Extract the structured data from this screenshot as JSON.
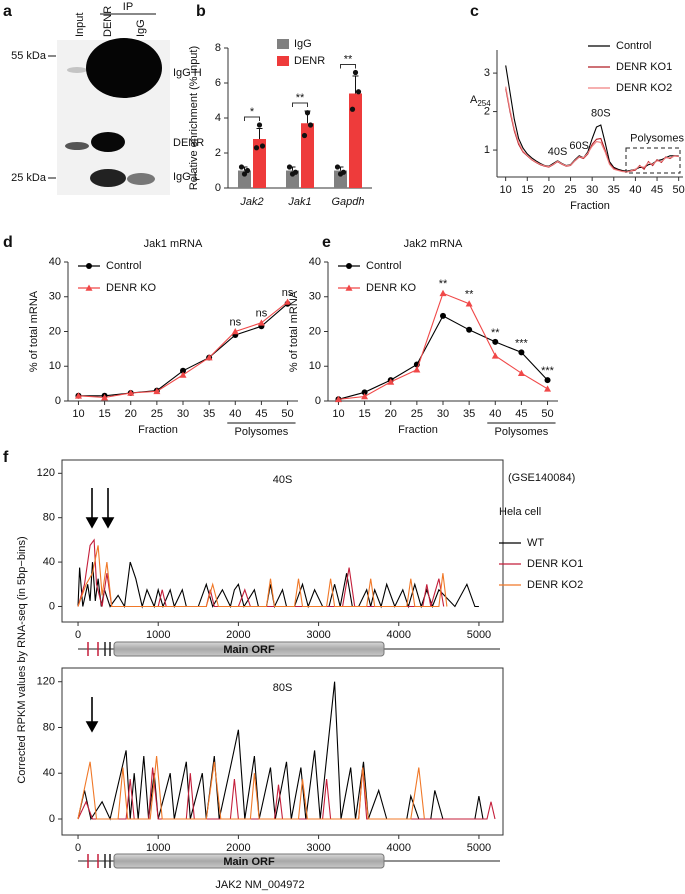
{
  "panel_labels": [
    "a",
    "b",
    "c",
    "d",
    "e",
    "f"
  ],
  "blot": {
    "ip_label": "IP",
    "lanes": [
      "Input",
      "DENR",
      "IgG"
    ],
    "markers": [
      "55 kDa",
      "25 kDa"
    ],
    "bands": [
      "IgG H",
      "DENR",
      "IgG L"
    ]
  },
  "figure_f": {
    "ylabel": "Corrected RPKM values by RNA-seq (in 5bp−bins)",
    "dataset": "(GSE140084)",
    "cell": "Hela cell",
    "caption": "JAK2 NM_004972",
    "gene_model": "Main ORF"
  },
  "chart_data": [
    {
      "type": "bar",
      "ylabel": "Relative enrichment (% input)",
      "categories": [
        "Jak2",
        "Jak1",
        "Gapdh"
      ],
      "series": [
        {
          "name": "IgG",
          "color": "#808080",
          "values": [
            1,
            1,
            1
          ],
          "errors": [
            0.2,
            0.2,
            0.2
          ],
          "points": [
            [
              1.2,
              0.8,
              1.0
            ],
            [
              1.2,
              0.8,
              0.9
            ],
            [
              1.2,
              0.8,
              0.9
            ]
          ]
        },
        {
          "name": "DENR",
          "color": "#ee3b3b",
          "values": [
            2.8,
            3.7,
            5.4
          ],
          "errors": [
            0.6,
            0.7,
            1.0
          ],
          "points": [
            [
              2.3,
              3.6,
              2.4
            ],
            [
              3.0,
              4.3,
              3.6
            ],
            [
              4.5,
              6.6,
              5.5
            ]
          ]
        }
      ],
      "significance": [
        "*",
        "**",
        "**"
      ],
      "ylim": [
        0,
        8
      ],
      "yticks": [
        0,
        2,
        4,
        6,
        8
      ],
      "legend": "top-right"
    },
    {
      "type": "line",
      "xlabel": "Fraction",
      "ylabel": "A",
      "ylabel_sub": "254",
      "x": [
        10,
        11,
        12,
        13,
        14,
        15,
        16,
        17,
        18,
        19,
        20,
        21,
        22,
        23,
        24,
        25,
        26,
        27,
        28,
        29,
        30,
        31,
        32,
        33,
        34,
        35,
        36,
        37,
        38,
        40,
        41,
        42,
        43,
        44,
        45,
        46,
        47,
        48,
        49,
        50
      ],
      "series": [
        {
          "name": "Control",
          "color": "#000000",
          "values": [
            3.2,
            2.5,
            1.8,
            1.3,
            1.05,
            0.9,
            0.8,
            0.72,
            0.65,
            0.6,
            0.58,
            0.65,
            0.72,
            0.65,
            0.6,
            0.62,
            0.75,
            0.85,
            0.8,
            0.95,
            1.3,
            1.6,
            1.65,
            1.2,
            0.7,
            0.55,
            0.5,
            0.47,
            0.45,
            0.5,
            0.55,
            0.55,
            0.62,
            0.65,
            0.72,
            0.75,
            0.8,
            0.85,
            0.85,
            0.85
          ]
        },
        {
          "name": "DENR KO1",
          "color": "#b01c24",
          "values": [
            2.6,
            2.0,
            1.5,
            1.15,
            0.95,
            0.85,
            0.75,
            0.68,
            0.62,
            0.58,
            0.56,
            0.62,
            0.7,
            0.63,
            0.58,
            0.6,
            0.72,
            0.82,
            0.78,
            0.9,
            1.15,
            1.28,
            1.3,
            1.0,
            0.65,
            0.52,
            0.48,
            0.45,
            0.43,
            0.48,
            0.6,
            0.5,
            0.7,
            0.6,
            0.75,
            0.68,
            0.82,
            0.78,
            0.85,
            0.83
          ]
        },
        {
          "name": "DENR KO2",
          "color": "#f08080",
          "values": [
            2.65,
            2.05,
            1.55,
            1.2,
            0.97,
            0.86,
            0.76,
            0.69,
            0.63,
            0.59,
            0.57,
            0.63,
            0.71,
            0.64,
            0.59,
            0.61,
            0.73,
            0.83,
            0.8,
            0.92,
            1.1,
            1.22,
            1.2,
            0.95,
            0.63,
            0.5,
            0.47,
            0.44,
            0.43,
            0.5,
            0.58,
            0.55,
            0.68,
            0.63,
            0.72,
            0.7,
            0.8,
            0.8,
            0.84,
            0.84
          ]
        }
      ],
      "annotations": [
        {
          "text": "40S",
          "x": 22,
          "y": 0.95
        },
        {
          "text": "60S",
          "x": 27,
          "y": 1.1
        },
        {
          "text": "80S",
          "x": 32,
          "y": 1.95
        },
        {
          "text": "Polysomes",
          "x": 45,
          "y": 1.3
        }
      ],
      "xlim": [
        8,
        51
      ],
      "xticks": [
        10,
        15,
        20,
        25,
        30,
        35,
        40,
        45,
        50
      ],
      "ylim": [
        0.3,
        3.6
      ],
      "yticks": [
        1,
        2,
        3
      ],
      "legend": "top-right"
    },
    {
      "type": "line",
      "title": "Jak1 mRNA",
      "xlabel": "Fraction",
      "ylabel": "% of total mRNA",
      "x": [
        10,
        15,
        20,
        25,
        30,
        35,
        40,
        45,
        50
      ],
      "series": [
        {
          "name": "Control",
          "color": "#000000",
          "marker": "circle",
          "values": [
            1.5,
            1.5,
            2.3,
            3,
            8.7,
            12.5,
            19,
            21.5,
            28
          ]
        },
        {
          "name": "DENR KO",
          "color": "#f04848",
          "marker": "triangle",
          "values": [
            1.5,
            1,
            2.3,
            2.8,
            7.5,
            12.5,
            20,
            22.5,
            28.5
          ]
        }
      ],
      "annotations": [
        {
          "text": "ns",
          "x": 40
        },
        {
          "text": "ns",
          "x": 45
        },
        {
          "text": "ns",
          "x": 50
        }
      ],
      "bracket": {
        "label": "Polysomes",
        "from": 40,
        "to": 50
      },
      "xlim": [
        8,
        52
      ],
      "xticks": [
        10,
        15,
        20,
        25,
        30,
        35,
        40,
        45,
        50
      ],
      "ylim": [
        0,
        40
      ],
      "yticks": [
        0,
        10,
        20,
        30,
        40
      ],
      "legend": "top-left"
    },
    {
      "type": "line",
      "title": "Jak2 mRNA",
      "xlabel": "Fraction",
      "ylabel": "% of total mRNA",
      "x": [
        10,
        15,
        20,
        25,
        30,
        35,
        40,
        45,
        50
      ],
      "series": [
        {
          "name": "Control",
          "color": "#000000",
          "marker": "circle",
          "values": [
            0.5,
            2.5,
            6,
            10.5,
            24.5,
            20.5,
            17,
            14,
            6
          ]
        },
        {
          "name": "DENR KO",
          "color": "#f04848",
          "marker": "triangle",
          "values": [
            0.5,
            1.3,
            5.5,
            9,
            31,
            28,
            13,
            8,
            3.5
          ]
        }
      ],
      "annotations": [
        {
          "text": "**",
          "x": 30
        },
        {
          "text": "**",
          "x": 35
        },
        {
          "text": "**",
          "x": 40
        },
        {
          "text": "***",
          "x": 45
        },
        {
          "text": "***",
          "x": 50
        }
      ],
      "bracket": {
        "label": "Polysomes",
        "from": 40,
        "to": 50
      },
      "xlim": [
        8,
        52
      ],
      "xticks": [
        10,
        15,
        20,
        25,
        30,
        35,
        40,
        45,
        50
      ],
      "ylim": [
        0,
        40
      ],
      "yticks": [
        0,
        10,
        20,
        30,
        40
      ],
      "legend": "top-left"
    },
    {
      "type": "line",
      "title": "40S",
      "box": true,
      "series": [
        {
          "name": "WT",
          "color": "#000000",
          "x": [
            0,
            20,
            60,
            120,
            150,
            180,
            215,
            250,
            290,
            330,
            400,
            500,
            580,
            650,
            720,
            800,
            860,
            950,
            1000,
            1060,
            1150,
            1200,
            1300,
            1350,
            1500,
            1600,
            1680,
            1800,
            1900,
            1950,
            2000,
            2070,
            2200,
            2250,
            2350,
            2400,
            2450,
            2550,
            2600,
            2700,
            2800,
            2870,
            2950,
            3050,
            3130,
            3200,
            3270,
            3350,
            3420,
            3500,
            3600,
            3650,
            3700,
            3780,
            3850,
            3950,
            4050,
            4120,
            4200,
            4280,
            4350,
            4420,
            4500,
            4700,
            4850,
            4950,
            5000
          ],
          "values": [
            0,
            35,
            0,
            20,
            5,
            40,
            5,
            25,
            0,
            15,
            0,
            10,
            0,
            40,
            25,
            0,
            15,
            0,
            15,
            0,
            15,
            0,
            15,
            0,
            0,
            20,
            0,
            15,
            0,
            15,
            20,
            0,
            15,
            0,
            0,
            20,
            0,
            15,
            0,
            0,
            20,
            0,
            15,
            0,
            0,
            20,
            0,
            30,
            0,
            0,
            15,
            0,
            15,
            0,
            20,
            0,
            15,
            0,
            20,
            0,
            15,
            0,
            15,
            0,
            20,
            0,
            0
          ]
        },
        {
          "name": "DENR KO1",
          "color": "#c41e3a",
          "x": [
            0,
            80,
            150,
            200,
            230,
            300,
            360,
            420,
            1000,
            1050,
            1100,
            1600,
            1650,
            1700,
            2000,
            2080,
            2150,
            3300,
            3380,
            3450,
            4300,
            4350,
            4400,
            4500,
            4560
          ],
          "values": [
            0,
            20,
            55,
            60,
            20,
            0,
            30,
            0,
            0,
            15,
            0,
            0,
            15,
            0,
            0,
            15,
            0,
            0,
            35,
            0,
            0,
            20,
            0,
            25,
            0
          ]
        },
        {
          "name": "DENR KO2",
          "color": "#f07828",
          "x": [
            0,
            100,
            180,
            250,
            300,
            360,
            420,
            1600,
            1680,
            1750,
            2350,
            2400,
            2450,
            2700,
            2750,
            2800,
            3100,
            3150,
            3200,
            3600,
            3650,
            3700,
            4100,
            4150,
            4200,
            4500,
            4550,
            4600
          ],
          "values": [
            0,
            20,
            30,
            55,
            10,
            40,
            0,
            0,
            20,
            0,
            0,
            25,
            0,
            0,
            25,
            0,
            0,
            25,
            0,
            0,
            25,
            0,
            0,
            25,
            0,
            0,
            30,
            0
          ]
        }
      ],
      "xlim": [
        -200,
        5300
      ],
      "xticks": [
        0,
        1000,
        2000,
        3000,
        4000,
        5000
      ],
      "ylim": [
        -14,
        132
      ],
      "yticks": [
        0,
        40,
        80,
        120
      ],
      "legend": "right"
    },
    {
      "type": "line",
      "title": "80S",
      "box": true,
      "series": [
        {
          "color": "#000000",
          "x": [
            0,
            80,
            160,
            300,
            400,
            600,
            650,
            700,
            750,
            820,
            880,
            950,
            1000,
            1150,
            1200,
            1350,
            1400,
            1550,
            1600,
            1700,
            1760,
            1900,
            2000,
            2080,
            2200,
            2260,
            2400,
            2460,
            2600,
            2660,
            2780,
            2840,
            2950,
            3020,
            3200,
            3280,
            3400,
            3460,
            3560,
            3620,
            3750,
            3850,
            4100,
            4150,
            4250,
            4400,
            4450,
            4550,
            4950,
            5000,
            5050
          ],
          "values": [
            0,
            25,
            0,
            15,
            0,
            60,
            0,
            40,
            0,
            55,
            0,
            40,
            0,
            40,
            0,
            50,
            0,
            40,
            0,
            55,
            0,
            45,
            78,
            0,
            55,
            0,
            45,
            0,
            50,
            0,
            45,
            0,
            60,
            0,
            120,
            0,
            45,
            0,
            50,
            0,
            25,
            0,
            0,
            20,
            0,
            0,
            25,
            0,
            0,
            20,
            0
          ]
        },
        {
          "color": "#c41e3a",
          "x": [
            0,
            100,
            180,
            600,
            650,
            700,
            880,
            930,
            1000,
            1350,
            1400,
            1450,
            1900,
            1950,
            2000,
            2450,
            2500,
            2550,
            3050,
            3100,
            3150,
            3500,
            3550,
            3600,
            5100,
            5150,
            5200
          ],
          "values": [
            0,
            15,
            0,
            0,
            35,
            0,
            0,
            45,
            0,
            0,
            40,
            0,
            0,
            35,
            0,
            0,
            30,
            0,
            0,
            35,
            0,
            0,
            45,
            0,
            0,
            15,
            0
          ]
        },
        {
          "color": "#f07828",
          "x": [
            0,
            150,
            230,
            500,
            560,
            620,
            900,
            980,
            1050,
            1600,
            1700,
            1780,
            2150,
            2200,
            2260,
            2750,
            2800,
            2860,
            3500,
            3550,
            3620,
            4150,
            4250,
            4320
          ],
          "values": [
            0,
            50,
            0,
            0,
            45,
            0,
            0,
            55,
            0,
            0,
            50,
            0,
            0,
            40,
            0,
            0,
            35,
            0,
            0,
            45,
            0,
            0,
            45,
            0
          ]
        }
      ],
      "xlim": [
        -200,
        5300
      ],
      "xticks": [
        0,
        1000,
        2000,
        3000,
        4000,
        5000
      ],
      "ylim": [
        -14,
        132
      ],
      "yticks": [
        0,
        40,
        80,
        120
      ]
    }
  ]
}
